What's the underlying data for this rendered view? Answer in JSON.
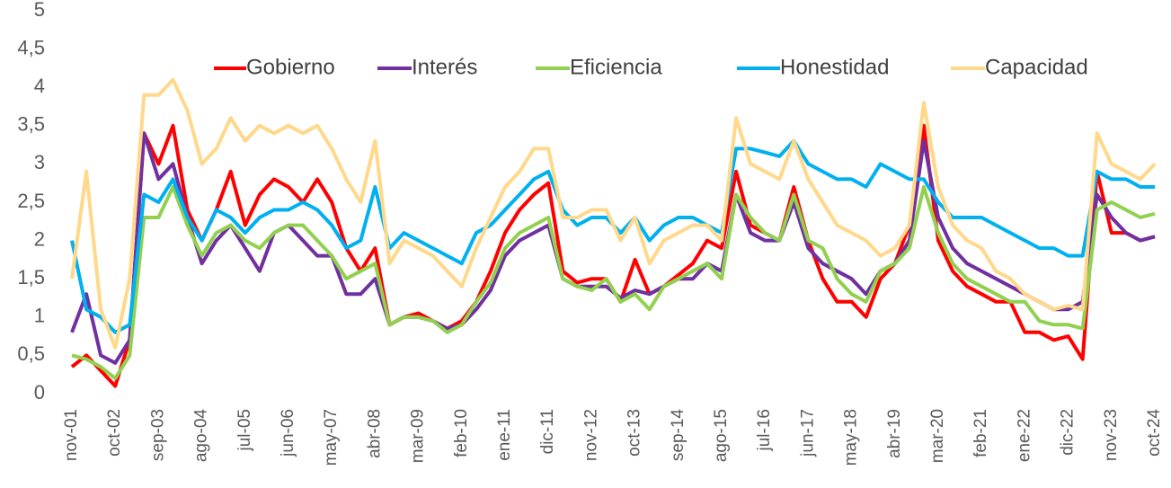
{
  "chart_data": {
    "type": "line",
    "categories": [
      "nov-01",
      null,
      null,
      "oct-02",
      null,
      null,
      "sep-03",
      null,
      null,
      "ago-04",
      null,
      null,
      "jul-05",
      null,
      null,
      "jun-06",
      null,
      null,
      "may-07",
      null,
      null,
      "abr-08",
      null,
      null,
      "mar-09",
      null,
      null,
      "feb-10",
      null,
      null,
      "ene-11",
      null,
      null,
      "dic-11",
      null,
      null,
      "nov-12",
      null,
      null,
      "oct-13",
      null,
      null,
      "sep-14",
      null,
      null,
      "ago-15",
      null,
      null,
      "jul-16",
      null,
      null,
      "jun-17",
      null,
      null,
      "may-18",
      null,
      null,
      "abr-19",
      null,
      null,
      "mar-20",
      null,
      null,
      "feb-21",
      null,
      null,
      "ene-22",
      null,
      null,
      "dic-22",
      null,
      null,
      "nov-23",
      null,
      null,
      "oct-24"
    ],
    "series": [
      {
        "name": "Gobierno",
        "color": "#ff0000",
        "values": [
          0.35,
          0.5,
          0.3,
          0.1,
          0.7,
          3.4,
          3.0,
          3.5,
          2.4,
          2.0,
          2.4,
          2.9,
          2.2,
          2.6,
          2.8,
          2.7,
          2.5,
          2.8,
          2.5,
          1.9,
          1.6,
          1.9,
          0.9,
          1.0,
          1.05,
          0.95,
          0.85,
          0.95,
          1.2,
          1.6,
          2.1,
          2.4,
          2.6,
          2.75,
          1.6,
          1.45,
          1.5,
          1.5,
          1.2,
          1.75,
          1.3,
          1.4,
          1.55,
          1.7,
          2.0,
          1.9,
          2.9,
          2.2,
          2.1,
          2.0,
          2.7,
          2.0,
          1.5,
          1.2,
          1.2,
          1.0,
          1.5,
          1.7,
          2.2,
          3.5,
          2.0,
          1.6,
          1.4,
          1.3,
          1.2,
          1.2,
          0.8,
          0.8,
          0.7,
          0.75,
          0.45,
          2.9,
          2.1,
          2.1,
          2.0,
          2.05
        ]
      },
      {
        "name": "Interés",
        "color": "#7030a0",
        "values": [
          0.8,
          1.3,
          0.5,
          0.4,
          0.7,
          3.4,
          2.8,
          3.0,
          2.3,
          1.7,
          2.0,
          2.2,
          1.9,
          1.6,
          2.1,
          2.2,
          2.0,
          1.8,
          1.8,
          1.3,
          1.3,
          1.5,
          0.9,
          1.0,
          1.0,
          0.95,
          0.85,
          0.9,
          1.1,
          1.35,
          1.8,
          2.0,
          2.1,
          2.2,
          1.5,
          1.4,
          1.4,
          1.4,
          1.25,
          1.35,
          1.3,
          1.4,
          1.5,
          1.5,
          1.7,
          1.6,
          2.6,
          2.1,
          2.0,
          2.0,
          2.5,
          1.9,
          1.7,
          1.6,
          1.5,
          1.3,
          1.6,
          1.7,
          2.0,
          3.3,
          2.3,
          1.9,
          1.7,
          1.6,
          1.5,
          1.4,
          1.3,
          1.2,
          1.1,
          1.1,
          1.2,
          2.6,
          2.3,
          2.1,
          2.0,
          2.05
        ]
      },
      {
        "name": "Eficiencia",
        "color": "#92d050",
        "values": [
          0.5,
          0.45,
          0.35,
          0.2,
          0.5,
          2.3,
          2.3,
          2.7,
          2.2,
          1.8,
          2.1,
          2.2,
          2.0,
          1.9,
          2.1,
          2.2,
          2.2,
          2.0,
          1.8,
          1.5,
          1.6,
          1.7,
          0.9,
          1.0,
          1.0,
          0.95,
          0.8,
          0.9,
          1.2,
          1.45,
          1.9,
          2.1,
          2.2,
          2.3,
          1.5,
          1.4,
          1.35,
          1.5,
          1.2,
          1.3,
          1.1,
          1.4,
          1.5,
          1.6,
          1.7,
          1.5,
          2.6,
          2.3,
          2.1,
          2.0,
          2.6,
          2.0,
          1.9,
          1.5,
          1.3,
          1.2,
          1.6,
          1.7,
          1.9,
          2.7,
          2.1,
          1.7,
          1.5,
          1.4,
          1.3,
          1.2,
          1.2,
          0.95,
          0.9,
          0.9,
          0.85,
          2.4,
          2.5,
          2.4,
          2.3,
          2.35
        ]
      },
      {
        "name": "Honestidad",
        "color": "#00b0f0",
        "values": [
          2.0,
          1.1,
          1.0,
          0.8,
          0.9,
          2.6,
          2.5,
          2.8,
          2.3,
          2.0,
          2.4,
          2.3,
          2.1,
          2.3,
          2.4,
          2.4,
          2.5,
          2.4,
          2.2,
          1.9,
          2.0,
          2.7,
          1.9,
          2.1,
          2.0,
          1.9,
          1.8,
          1.7,
          2.1,
          2.2,
          2.4,
          2.6,
          2.8,
          2.9,
          2.4,
          2.2,
          2.3,
          2.3,
          2.1,
          2.3,
          2.0,
          2.2,
          2.3,
          2.3,
          2.2,
          2.1,
          3.2,
          3.2,
          3.15,
          3.1,
          3.3,
          3.0,
          2.9,
          2.8,
          2.8,
          2.7,
          3.0,
          2.9,
          2.8,
          2.8,
          2.5,
          2.3,
          2.3,
          2.3,
          2.2,
          2.1,
          2.0,
          1.9,
          1.9,
          1.8,
          1.8,
          2.9,
          2.8,
          2.8,
          2.7,
          2.7
        ]
      },
      {
        "name": "Capacidad",
        "color": "#ffd88a",
        "values": [
          1.5,
          2.9,
          1.1,
          0.6,
          1.5,
          3.9,
          3.9,
          4.1,
          3.7,
          3.0,
          3.2,
          3.6,
          3.3,
          3.5,
          3.4,
          3.5,
          3.4,
          3.5,
          3.2,
          2.8,
          2.5,
          3.3,
          1.7,
          2.0,
          1.9,
          1.8,
          1.6,
          1.4,
          1.9,
          2.3,
          2.7,
          2.9,
          3.2,
          3.2,
          2.3,
          2.3,
          2.4,
          2.4,
          2.0,
          2.3,
          1.7,
          2.0,
          2.1,
          2.2,
          2.2,
          2.0,
          3.6,
          3.0,
          2.9,
          2.8,
          3.3,
          2.8,
          2.5,
          2.2,
          2.1,
          2.0,
          1.8,
          1.9,
          2.2,
          3.8,
          2.7,
          2.2,
          2.0,
          1.9,
          1.6,
          1.5,
          1.3,
          1.2,
          1.1,
          1.15,
          1.1,
          3.4,
          3.0,
          2.9,
          2.8,
          3.0
        ]
      }
    ],
    "ylim": [
      0,
      5
    ],
    "yticks": [
      0,
      {
        "value": 0.5,
        "label": "0,5"
      },
      1,
      {
        "value": 1.5,
        "label": "1,5"
      },
      2,
      {
        "value": 2.5,
        "label": "2,5"
      },
      3,
      {
        "value": 3.5,
        "label": "3,5"
      },
      4,
      {
        "value": 4.5,
        "label": "4,5"
      },
      5
    ],
    "grid": false,
    "legend": "top"
  }
}
